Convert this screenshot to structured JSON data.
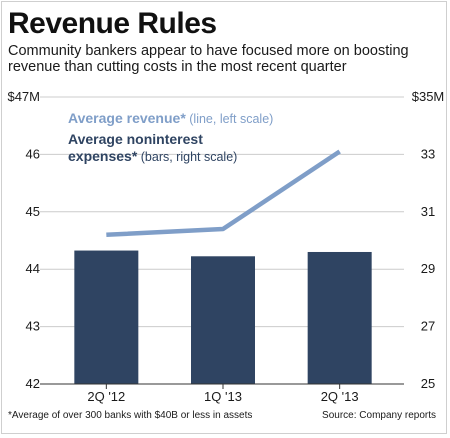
{
  "title": "Revenue Rules",
  "subtitle": "Community bankers appear to have focused more on boosting revenue than cutting costs in the most recent quarter",
  "footnote": "*Average of over 300 banks with $40B or less in assets",
  "source": "Source: Company reports",
  "colors": {
    "line": "#7f9ec8",
    "bars": "#2f4462",
    "grid": "#cccccc",
    "text": "#1a1a1a"
  },
  "chart_data": {
    "type": "bar",
    "categories": [
      "2Q '12",
      "1Q '13",
      "2Q '13"
    ],
    "series": [
      {
        "name": "Average revenue* (line, left scale)",
        "kind": "line",
        "axis": "left",
        "values": [
          44.6,
          44.7,
          46.05
        ]
      },
      {
        "name": "Average noninterest expenses* (bars, right scale)",
        "kind": "bar",
        "axis": "right",
        "values": [
          29.65,
          29.45,
          29.6
        ]
      }
    ],
    "left_axis": {
      "ylim": [
        42,
        47
      ],
      "ticks": [
        "42",
        "43",
        "44",
        "45",
        "46",
        "$47M"
      ]
    },
    "right_axis": {
      "ylim": [
        25,
        35
      ],
      "ticks": [
        "25",
        "27",
        "29",
        "31",
        "33",
        "$35M"
      ]
    },
    "legend": {
      "line_name": "Average revenue*",
      "line_note": " (line, left scale)",
      "bar_name_1": "Average noninterest",
      "bar_name_2": "expenses*",
      "bar_note": " (bars, right scale)"
    },
    "grid": true
  }
}
